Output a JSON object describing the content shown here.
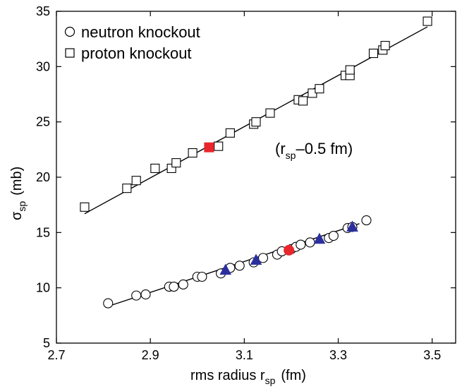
{
  "chart_data": {
    "type": "scatter",
    "xlabel": "rms radius r",
    "xlabel_sub": "sp",
    "xlabel_unit": "(fm)",
    "ylabel": "σ",
    "ylabel_sub": "sp",
    "ylabel_unit": "(mb)",
    "xlim": [
      2.7,
      3.55
    ],
    "ylim": [
      5,
      35
    ],
    "xticks": [
      2.7,
      2.9,
      3.1,
      3.3,
      3.5
    ],
    "xtick_labels": [
      "2.7",
      "2.9",
      "3.1",
      "3.3",
      "3.5"
    ],
    "yticks": [
      5,
      10,
      15,
      20,
      25,
      30,
      35
    ],
    "ytick_labels": [
      "5",
      "10",
      "15",
      "20",
      "25",
      "30",
      "35"
    ],
    "annotation": {
      "open": "(r",
      "sub": "sp",
      "rest": "–0.5 fm)"
    },
    "legend_position": "top-left",
    "legend": [
      {
        "label": "neutron knockout",
        "marker": "circle"
      },
      {
        "label": "proton knockout",
        "marker": "square"
      }
    ],
    "colors": {
      "highlight_red": "#e8262c",
      "triangle_blue": "#2b2f9e",
      "open_marker_stroke": "#000000",
      "fit_line": "#000000"
    },
    "series": [
      {
        "marker": "circle",
        "x": [
          2.81,
          2.87,
          2.89,
          2.94,
          2.95,
          2.97,
          3.0,
          3.01,
          3.05,
          3.07,
          3.09,
          3.12,
          3.14,
          3.17,
          3.18,
          3.2,
          3.21,
          3.22,
          3.24,
          3.28,
          3.29,
          3.32,
          3.33,
          3.36
        ],
        "y": [
          8.6,
          9.3,
          9.4,
          10.1,
          10.1,
          10.3,
          11.0,
          11.0,
          11.3,
          11.8,
          12.0,
          12.3,
          12.7,
          13.0,
          13.3,
          13.5,
          13.7,
          13.9,
          14.1,
          14.5,
          14.7,
          15.4,
          15.5,
          16.1
        ]
      },
      {
        "marker": "square",
        "x": [
          2.76,
          2.85,
          2.87,
          2.91,
          2.945,
          2.955,
          2.99,
          3.045,
          3.07,
          3.12,
          3.125,
          3.155,
          3.215,
          3.225,
          3.245,
          3.26,
          3.315,
          3.325,
          3.325,
          3.375,
          3.395,
          3.4,
          3.49
        ],
        "y": [
          17.3,
          19.0,
          19.7,
          20.8,
          20.8,
          21.3,
          22.2,
          22.8,
          24.0,
          24.8,
          25.0,
          25.8,
          27.0,
          26.9,
          27.6,
          28.0,
          29.2,
          29.2,
          29.7,
          31.2,
          31.5,
          31.9,
          34.1
        ]
      },
      {
        "marker": "filled-circle",
        "x": [
          3.195
        ],
        "y": [
          13.4
        ]
      },
      {
        "marker": "filled-square",
        "x": [
          3.025
        ],
        "y": [
          22.7
        ]
      },
      {
        "marker": "filled-triangle",
        "x": [
          3.06,
          3.125,
          3.26,
          3.33
        ],
        "y": [
          11.6,
          12.5,
          14.4,
          15.5
        ]
      }
    ],
    "fit_lines": [
      {
        "x": [
          2.815,
          3.345
        ],
        "y": [
          8.4,
          15.8
        ]
      },
      {
        "x": [
          2.76,
          3.49
        ],
        "y": [
          16.7,
          33.6
        ]
      }
    ]
  }
}
